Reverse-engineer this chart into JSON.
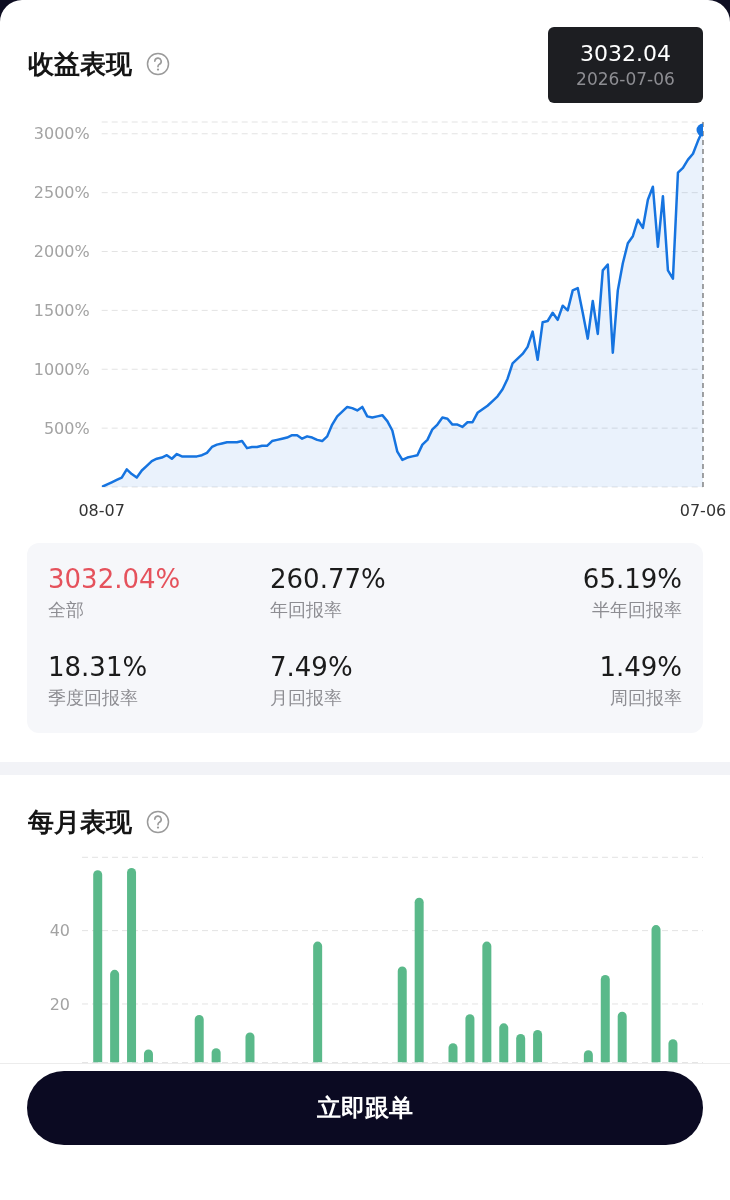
{
  "chart_data": [
    {
      "type": "area",
      "title": "收益表现",
      "categories": [
        "08-07",
        null,
        null,
        null,
        null,
        null,
        null,
        null,
        null,
        null,
        null,
        null,
        null,
        null,
        null,
        null,
        null,
        null,
        null,
        null,
        null,
        null,
        null,
        null,
        null,
        null,
        null,
        null,
        null,
        null,
        null,
        null,
        null,
        null,
        null,
        null,
        null,
        null,
        null,
        null,
        null,
        null,
        null,
        null,
        null,
        null,
        null,
        null,
        null,
        null,
        null,
        null,
        null,
        null,
        null,
        null,
        null,
        null,
        null,
        null,
        null,
        null,
        null,
        null,
        null,
        null,
        null,
        null,
        null,
        null,
        null,
        null,
        null,
        null,
        null,
        null,
        null,
        null,
        null,
        null,
        null,
        null,
        null,
        null,
        null,
        null,
        null,
        null,
        null,
        null,
        null,
        null,
        null,
        null,
        null,
        null,
        null,
        null,
        null,
        null,
        null,
        null,
        null,
        null,
        null,
        null,
        null,
        null,
        null,
        null,
        null,
        null,
        null,
        null,
        null,
        null,
        null,
        null,
        null,
        null,
        "07-06"
      ],
      "series": [
        {
          "type": "area",
          "color": "#1674e0",
          "values": [
            0,
            20,
            40,
            60,
            80,
            150,
            110,
            80,
            140,
            180,
            220,
            240,
            250,
            270,
            240,
            280,
            260,
            260,
            260,
            260,
            270,
            290,
            340,
            360,
            370,
            380,
            380,
            380,
            390,
            330,
            340,
            340,
            350,
            350,
            390,
            400,
            410,
            420,
            440,
            440,
            410,
            430,
            420,
            400,
            390,
            430,
            530,
            600,
            640,
            680,
            670,
            650,
            680,
            600,
            590,
            600,
            610,
            560,
            480,
            300,
            230,
            250,
            260,
            270,
            360,
            400,
            490,
            530,
            590,
            580,
            530,
            530,
            510,
            550,
            550,
            630,
            660,
            690,
            730,
            770,
            830,
            920,
            1050,
            1090,
            1130,
            1190,
            1320,
            1080,
            1400,
            1410,
            1480,
            1420,
            1540,
            1500,
            1670,
            1690,
            1480,
            1260,
            1580,
            1300,
            1840,
            1890,
            1140,
            1670,
            1900,
            2070,
            2130,
            2270,
            2200,
            2440,
            2550,
            2040,
            2470,
            1840,
            1770,
            2670,
            2710,
            2780,
            2830,
            2940,
            3032.04
          ]
        },
        {
          "type": "scatter",
          "color": "#1674e0",
          "marker": "circle",
          "x": [
            "07-06"
          ],
          "values": [
            3032.04
          ]
        }
      ],
      "ylim": [
        0,
        3100
      ],
      "yticks": [
        {
          "value": 500,
          "label": "500%"
        },
        {
          "value": 1000,
          "label": "1000%"
        },
        {
          "value": 1500,
          "label": "1500%"
        },
        {
          "value": 2000,
          "label": "2000%"
        },
        {
          "value": 2500,
          "label": "2500%"
        },
        {
          "value": 3000,
          "label": "3000%"
        }
      ],
      "grid": "y",
      "ref_lines": [
        {
          "axis": "x",
          "value": "07-06",
          "color": "#666666",
          "line_style": "dashed"
        }
      ],
      "annotations": [
        "3032.04",
        "2026-07-06"
      ]
    },
    {
      "type": "other",
      "annotations": [
        "3032.04%",
        "全部",
        "260.77%",
        "年回报率",
        "65.19%",
        "半年回报率",
        "18.31%",
        "季度回报率",
        "7.49%",
        "月回报率",
        "1.49%",
        "周回报率"
      ]
    },
    {
      "type": "bar",
      "title": "每月表现",
      "categories": [
        null,
        null,
        null,
        null,
        null,
        null,
        null,
        null,
        null,
        null,
        null,
        null,
        null,
        null,
        null,
        null,
        null,
        null,
        null,
        null,
        null,
        null,
        null,
        null,
        null,
        null,
        null,
        null,
        null,
        null,
        null,
        null,
        null,
        null,
        null,
        null
      ],
      "values": [
        56.5,
        29.3,
        57.1,
        7.6,
        null,
        null,
        17,
        7.9,
        null,
        12.2,
        null,
        null,
        null,
        37,
        null,
        null,
        null,
        null,
        30.2,
        49,
        null,
        9.3,
        17.2,
        37,
        14.7,
        11.8,
        12.9,
        null,
        null,
        7.4,
        27.9,
        17.9,
        null,
        41.5,
        10.4,
        null
      ],
      "color": "#5ab98a",
      "ylim": [
        4,
        60
      ],
      "yticks": [
        20,
        40
      ],
      "grid": "y",
      "tick_labels": "y"
    },
    {
      "type": "other",
      "annotations": [
        "立即跟单"
      ]
    }
  ]
}
